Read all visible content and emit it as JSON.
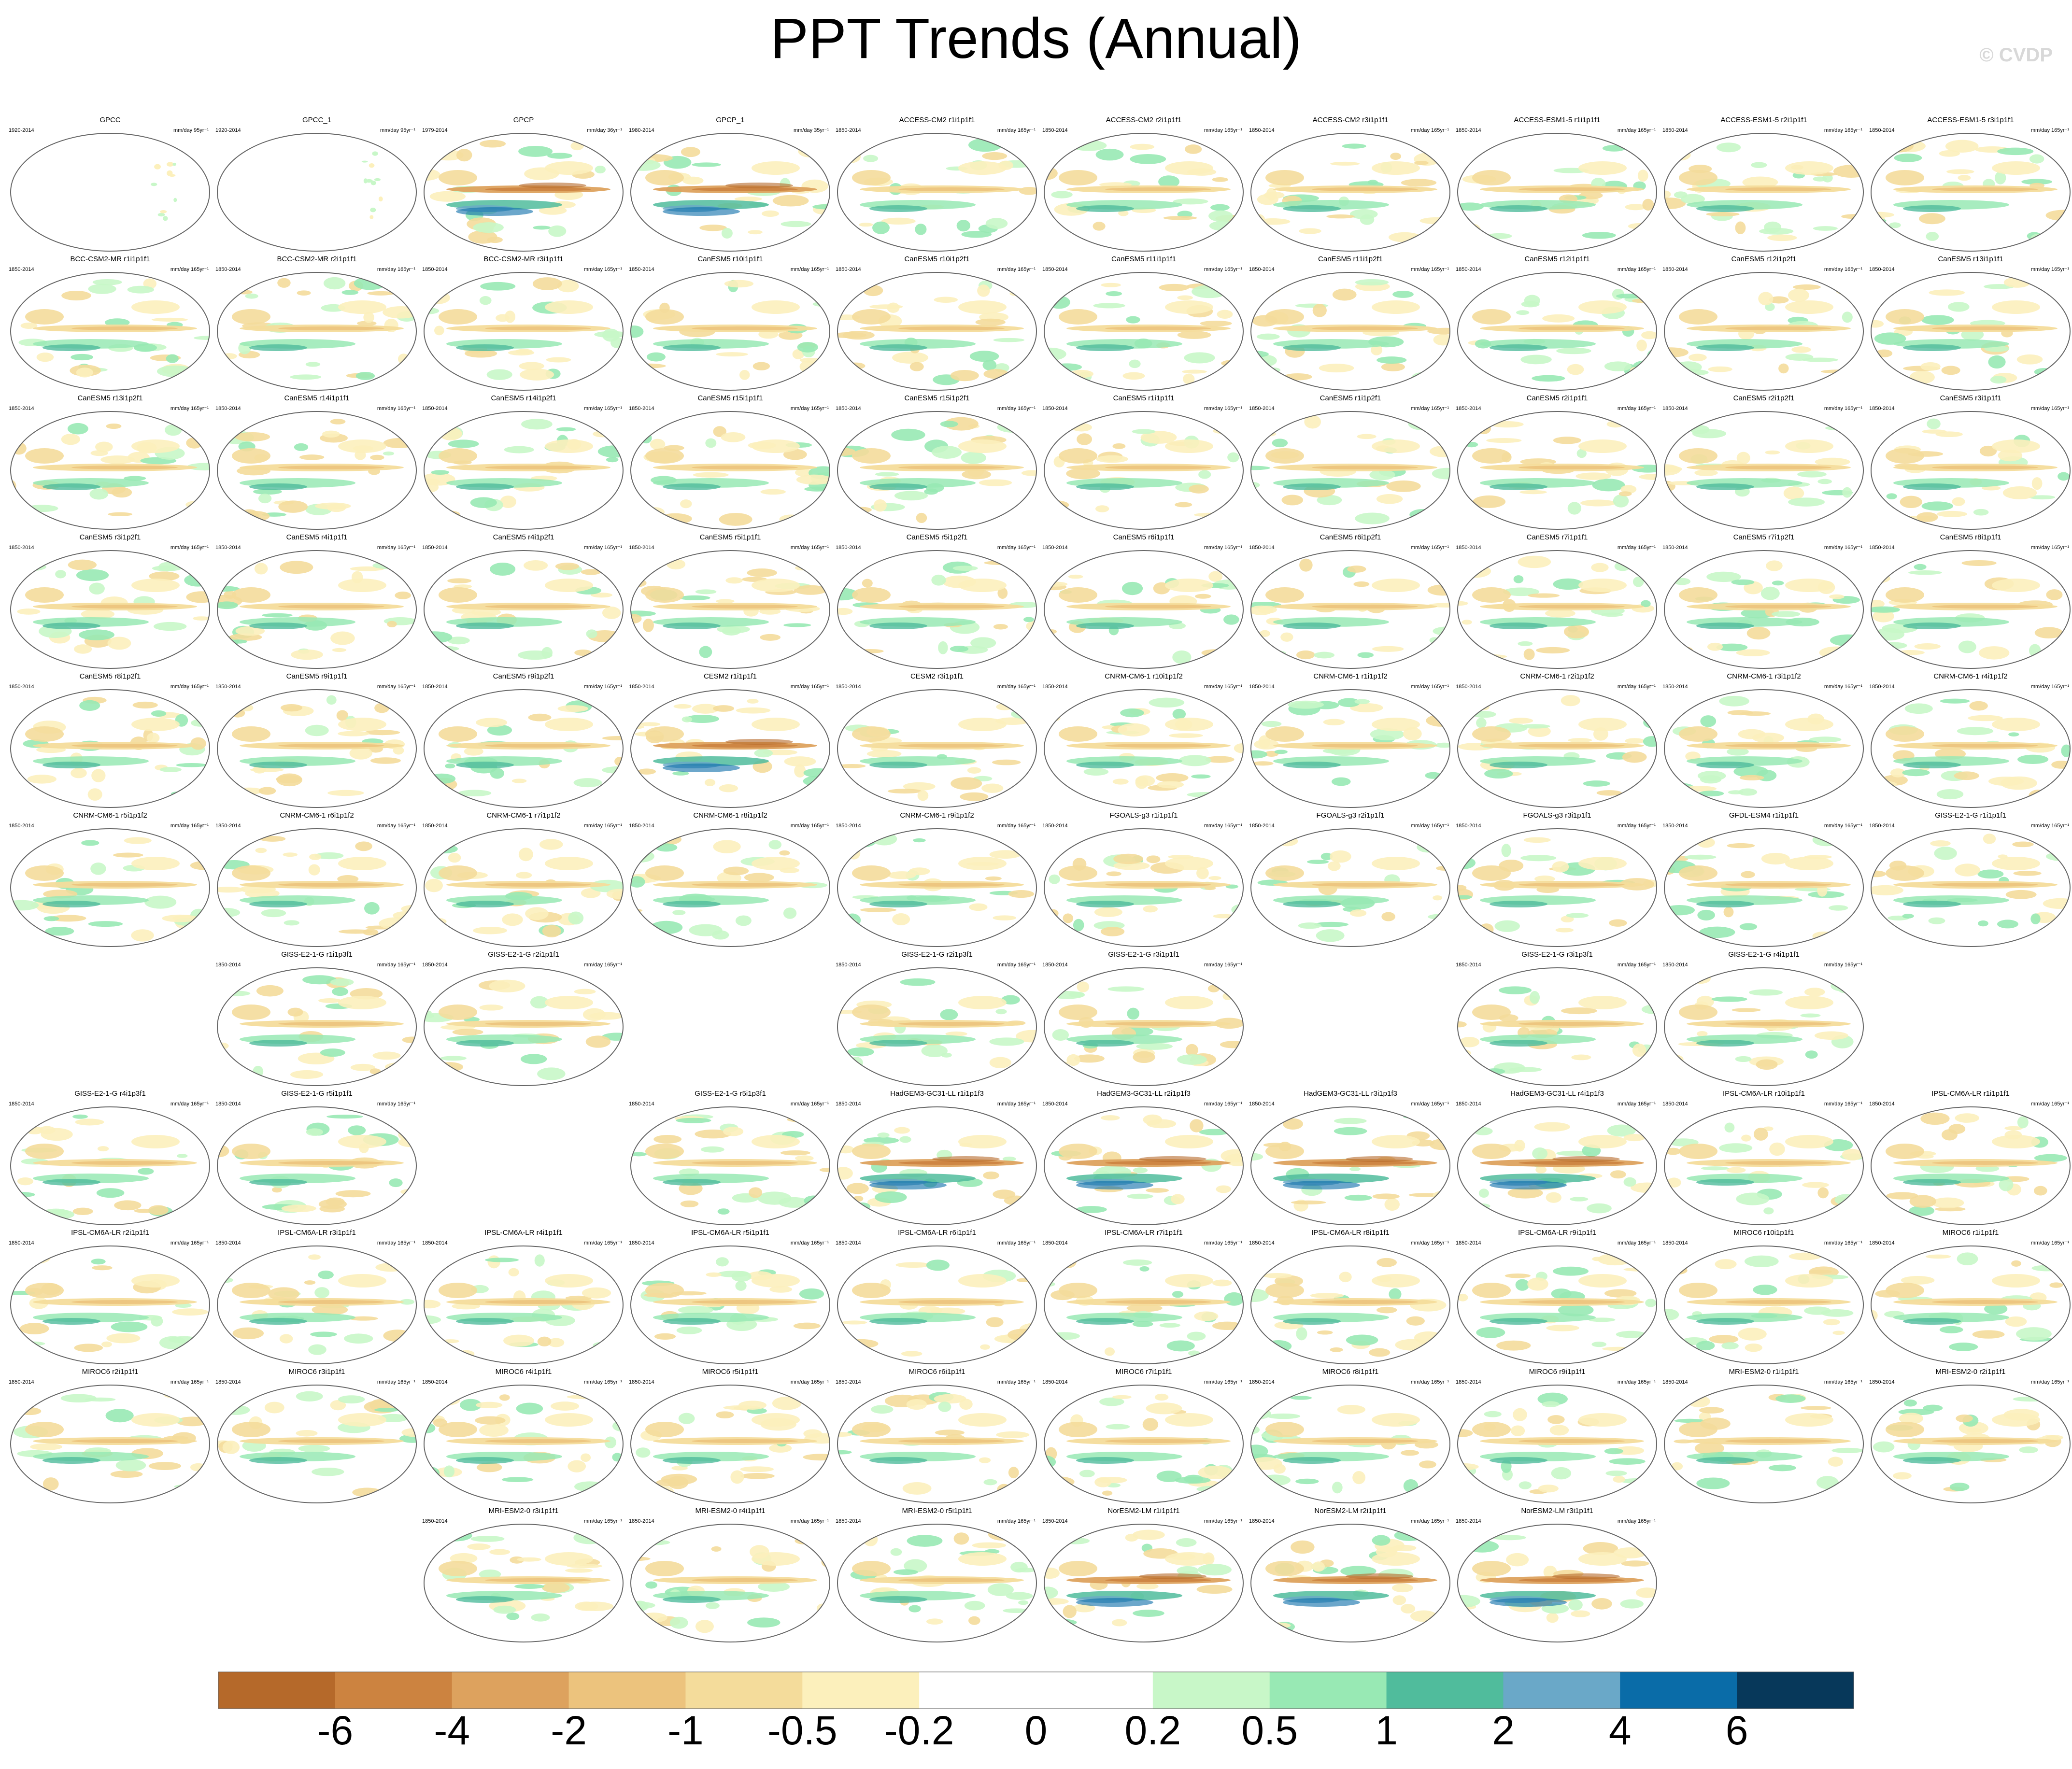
{
  "title": "PPT Trends (Annual)",
  "credit": "© CVDP",
  "chart_data": {
    "type": "heatmap",
    "variable": "PPT",
    "panel_grid": {
      "columns": 10,
      "rows": 11
    },
    "panels": [
      {
        "row": 0,
        "col": 0,
        "name": "GPCC",
        "period": "1920-2014",
        "units": "mm/day 95yr⁻¹",
        "pattern": "obs_land"
      },
      {
        "row": 0,
        "col": 1,
        "name": "GPCC_1",
        "period": "1920-2014",
        "units": "mm/day 95yr⁻¹",
        "pattern": "obs_land"
      },
      {
        "row": 0,
        "col": 2,
        "name": "GPCP",
        "period": "1979-2014",
        "units": "mm/day 36yr⁻¹",
        "pattern": "obs_full"
      },
      {
        "row": 0,
        "col": 3,
        "name": "GPCP_1",
        "period": "1980-2014",
        "units": "mm/day 35yr⁻¹",
        "pattern": "obs_full"
      },
      {
        "row": 0,
        "col": 4,
        "name": "ACCESS-CM2 r1i1p1f1",
        "period": "1850-2014",
        "units": "mm/day 165yr⁻¹",
        "pattern": "model"
      },
      {
        "row": 0,
        "col": 5,
        "name": "ACCESS-CM2 r2i1p1f1",
        "period": "1850-2014",
        "units": "mm/day 165yr⁻¹",
        "pattern": "model"
      },
      {
        "row": 0,
        "col": 6,
        "name": "ACCESS-CM2 r3i1p1f1",
        "period": "1850-2014",
        "units": "mm/day 165yr⁻¹",
        "pattern": "model"
      },
      {
        "row": 0,
        "col": 7,
        "name": "ACCESS-ESM1-5 r1i1p1f1",
        "period": "1850-2014",
        "units": "mm/day 165yr⁻¹",
        "pattern": "model"
      },
      {
        "row": 0,
        "col": 8,
        "name": "ACCESS-ESM1-5 r2i1p1f1",
        "period": "1850-2014",
        "units": "mm/day 165yr⁻¹",
        "pattern": "model"
      },
      {
        "row": 0,
        "col": 9,
        "name": "ACCESS-ESM1-5 r3i1p1f1",
        "period": "1850-2014",
        "units": "mm/day 165yr⁻¹",
        "pattern": "model"
      },
      {
        "row": 1,
        "col": 0,
        "name": "BCC-CSM2-MR r1i1p1f1",
        "period": "1850-2014",
        "units": "mm/day 165yr⁻¹",
        "pattern": "model"
      },
      {
        "row": 1,
        "col": 1,
        "name": "BCC-CSM2-MR r2i1p1f1",
        "period": "1850-2014",
        "units": "mm/day 165yr⁻¹",
        "pattern": "model"
      },
      {
        "row": 1,
        "col": 2,
        "name": "BCC-CSM2-MR r3i1p1f1",
        "period": "1850-2014",
        "units": "mm/day 165yr⁻¹",
        "pattern": "model"
      },
      {
        "row": 1,
        "col": 3,
        "name": "CanESM5 r10i1p1f1",
        "period": "1850-2014",
        "units": "mm/day 165yr⁻¹",
        "pattern": "model"
      },
      {
        "row": 1,
        "col": 4,
        "name": "CanESM5 r10i1p2f1",
        "period": "1850-2014",
        "units": "mm/day 165yr⁻¹",
        "pattern": "model"
      },
      {
        "row": 1,
        "col": 5,
        "name": "CanESM5 r11i1p1f1",
        "period": "1850-2014",
        "units": "mm/day 165yr⁻¹",
        "pattern": "model"
      },
      {
        "row": 1,
        "col": 6,
        "name": "CanESM5 r11i1p2f1",
        "period": "1850-2014",
        "units": "mm/day 165yr⁻¹",
        "pattern": "model"
      },
      {
        "row": 1,
        "col": 7,
        "name": "CanESM5 r12i1p1f1",
        "period": "1850-2014",
        "units": "mm/day 165yr⁻¹",
        "pattern": "model"
      },
      {
        "row": 1,
        "col": 8,
        "name": "CanESM5 r12i1p2f1",
        "period": "1850-2014",
        "units": "mm/day 165yr⁻¹",
        "pattern": "model"
      },
      {
        "row": 1,
        "col": 9,
        "name": "CanESM5 r13i1p1f1",
        "period": "1850-2014",
        "units": "mm/day 165yr⁻¹",
        "pattern": "model"
      },
      {
        "row": 2,
        "col": 0,
        "name": "CanESM5 r13i1p2f1",
        "period": "1850-2014",
        "units": "mm/day 165yr⁻¹",
        "pattern": "model"
      },
      {
        "row": 2,
        "col": 1,
        "name": "CanESM5 r14i1p1f1",
        "period": "1850-2014",
        "units": "mm/day 165yr⁻¹",
        "pattern": "model"
      },
      {
        "row": 2,
        "col": 2,
        "name": "CanESM5 r14i1p2f1",
        "period": "1850-2014",
        "units": "mm/day 165yr⁻¹",
        "pattern": "model"
      },
      {
        "row": 2,
        "col": 3,
        "name": "CanESM5 r15i1p1f1",
        "period": "1850-2014",
        "units": "mm/day 165yr⁻¹",
        "pattern": "model"
      },
      {
        "row": 2,
        "col": 4,
        "name": "CanESM5 r15i1p2f1",
        "period": "1850-2014",
        "units": "mm/day 165yr⁻¹",
        "pattern": "model"
      },
      {
        "row": 2,
        "col": 5,
        "name": "CanESM5 r1i1p1f1",
        "period": "1850-2014",
        "units": "mm/day 165yr⁻¹",
        "pattern": "model"
      },
      {
        "row": 2,
        "col": 6,
        "name": "CanESM5 r1i1p2f1",
        "period": "1850-2014",
        "units": "mm/day 165yr⁻¹",
        "pattern": "model"
      },
      {
        "row": 2,
        "col": 7,
        "name": "CanESM5 r2i1p1f1",
        "period": "1850-2014",
        "units": "mm/day 165yr⁻¹",
        "pattern": "model"
      },
      {
        "row": 2,
        "col": 8,
        "name": "CanESM5 r2i1p2f1",
        "period": "1850-2014",
        "units": "mm/day 165yr⁻¹",
        "pattern": "model"
      },
      {
        "row": 2,
        "col": 9,
        "name": "CanESM5 r3i1p1f1",
        "period": "1850-2014",
        "units": "mm/day 165yr⁻¹",
        "pattern": "model"
      },
      {
        "row": 3,
        "col": 0,
        "name": "CanESM5 r3i1p2f1",
        "period": "1850-2014",
        "units": "mm/day 165yr⁻¹",
        "pattern": "model"
      },
      {
        "row": 3,
        "col": 1,
        "name": "CanESM5 r4i1p1f1",
        "period": "1850-2014",
        "units": "mm/day 165yr⁻¹",
        "pattern": "model"
      },
      {
        "row": 3,
        "col": 2,
        "name": "CanESM5 r4i1p2f1",
        "period": "1850-2014",
        "units": "mm/day 165yr⁻¹",
        "pattern": "model"
      },
      {
        "row": 3,
        "col": 3,
        "name": "CanESM5 r5i1p1f1",
        "period": "1850-2014",
        "units": "mm/day 165yr⁻¹",
        "pattern": "model"
      },
      {
        "row": 3,
        "col": 4,
        "name": "CanESM5 r5i1p2f1",
        "period": "1850-2014",
        "units": "mm/day 165yr⁻¹",
        "pattern": "model"
      },
      {
        "row": 3,
        "col": 5,
        "name": "CanESM5 r6i1p1f1",
        "period": "1850-2014",
        "units": "mm/day 165yr⁻¹",
        "pattern": "model"
      },
      {
        "row": 3,
        "col": 6,
        "name": "CanESM5 r6i1p2f1",
        "period": "1850-2014",
        "units": "mm/day 165yr⁻¹",
        "pattern": "model"
      },
      {
        "row": 3,
        "col": 7,
        "name": "CanESM5 r7i1p1f1",
        "period": "1850-2014",
        "units": "mm/day 165yr⁻¹",
        "pattern": "model"
      },
      {
        "row": 3,
        "col": 8,
        "name": "CanESM5 r7i1p2f1",
        "period": "1850-2014",
        "units": "mm/day 165yr⁻¹",
        "pattern": "model"
      },
      {
        "row": 3,
        "col": 9,
        "name": "CanESM5 r8i1p1f1",
        "period": "1850-2014",
        "units": "mm/day 165yr⁻¹",
        "pattern": "model"
      },
      {
        "row": 4,
        "col": 0,
        "name": "CanESM5 r8i1p2f1",
        "period": "1850-2014",
        "units": "mm/day 165yr⁻¹",
        "pattern": "model"
      },
      {
        "row": 4,
        "col": 1,
        "name": "CanESM5 r9i1p1f1",
        "period": "1850-2014",
        "units": "mm/day 165yr⁻¹",
        "pattern": "model"
      },
      {
        "row": 4,
        "col": 2,
        "name": "CanESM5 r9i1p2f1",
        "period": "1850-2014",
        "units": "mm/day 165yr⁻¹",
        "pattern": "model"
      },
      {
        "row": 4,
        "col": 3,
        "name": "CESM2 r1i1p1f1",
        "period": "1850-2014",
        "units": "mm/day 165yr⁻¹",
        "pattern": "model_strong"
      },
      {
        "row": 4,
        "col": 4,
        "name": "CESM2 r3i1p1f1",
        "period": "1850-2014",
        "units": "mm/day 165yr⁻¹",
        "pattern": "model"
      },
      {
        "row": 4,
        "col": 5,
        "name": "CNRM-CM6-1 r10i1p1f2",
        "period": "1850-2014",
        "units": "mm/day 165yr⁻¹",
        "pattern": "model"
      },
      {
        "row": 4,
        "col": 6,
        "name": "CNRM-CM6-1 r1i1p1f2",
        "period": "1850-2014",
        "units": "mm/day 165yr⁻¹",
        "pattern": "model"
      },
      {
        "row": 4,
        "col": 7,
        "name": "CNRM-CM6-1 r2i1p1f2",
        "period": "1850-2014",
        "units": "mm/day 165yr⁻¹",
        "pattern": "model"
      },
      {
        "row": 4,
        "col": 8,
        "name": "CNRM-CM6-1 r3i1p1f2",
        "period": "1850-2014",
        "units": "mm/day 165yr⁻¹",
        "pattern": "model"
      },
      {
        "row": 4,
        "col": 9,
        "name": "CNRM-CM6-1 r4i1p1f2",
        "period": "1850-2014",
        "units": "mm/day 165yr⁻¹",
        "pattern": "model"
      },
      {
        "row": 5,
        "col": 0,
        "name": "CNRM-CM6-1 r5i1p1f2",
        "period": "1850-2014",
        "units": "mm/day 165yr⁻¹",
        "pattern": "model"
      },
      {
        "row": 5,
        "col": 1,
        "name": "CNRM-CM6-1 r6i1p1f2",
        "period": "1850-2014",
        "units": "mm/day 165yr⁻¹",
        "pattern": "model"
      },
      {
        "row": 5,
        "col": 2,
        "name": "CNRM-CM6-1 r7i1p1f2",
        "period": "1850-2014",
        "units": "mm/day 165yr⁻¹",
        "pattern": "model"
      },
      {
        "row": 5,
        "col": 3,
        "name": "CNRM-CM6-1 r8i1p1f2",
        "period": "1850-2014",
        "units": "mm/day 165yr⁻¹",
        "pattern": "model"
      },
      {
        "row": 5,
        "col": 4,
        "name": "CNRM-CM6-1 r9i1p1f2",
        "period": "1850-2014",
        "units": "mm/day 165yr⁻¹",
        "pattern": "model"
      },
      {
        "row": 5,
        "col": 5,
        "name": "FGOALS-g3 r1i1p1f1",
        "period": "1850-2014",
        "units": "mm/day 165yr⁻¹",
        "pattern": "model"
      },
      {
        "row": 5,
        "col": 6,
        "name": "FGOALS-g3 r2i1p1f1",
        "period": "1850-2014",
        "units": "mm/day 165yr⁻¹",
        "pattern": "model"
      },
      {
        "row": 5,
        "col": 7,
        "name": "FGOALS-g3 r3i1p1f1",
        "period": "1850-2014",
        "units": "mm/day 165yr⁻¹",
        "pattern": "model"
      },
      {
        "row": 5,
        "col": 8,
        "name": "GFDL-ESM4 r1i1p1f1",
        "period": "1850-2014",
        "units": "mm/day 165yr⁻¹",
        "pattern": "model"
      },
      {
        "row": 5,
        "col": 9,
        "name": "GISS-E2-1-G r1i1p1f1",
        "period": "1850-2014",
        "units": "mm/day 165yr⁻¹",
        "pattern": "model"
      },
      {
        "row": 6,
        "col": 1,
        "name": "GISS-E2-1-G r1i1p3f1",
        "period": "1850-2014",
        "units": "mm/day 165yr⁻¹",
        "pattern": "model"
      },
      {
        "row": 6,
        "col": 2,
        "name": "GISS-E2-1-G r2i1p1f1",
        "period": "1850-2014",
        "units": "mm/day 165yr⁻¹",
        "pattern": "model"
      },
      {
        "row": 6,
        "col": 4,
        "name": "GISS-E2-1-G r2i1p3f1",
        "period": "1850-2014",
        "units": "mm/day 165yr⁻¹",
        "pattern": "model"
      },
      {
        "row": 6,
        "col": 5,
        "name": "GISS-E2-1-G r3i1p1f1",
        "period": "1850-2014",
        "units": "mm/day 165yr⁻¹",
        "pattern": "model"
      },
      {
        "row": 6,
        "col": 7,
        "name": "GISS-E2-1-G r3i1p3f1",
        "period": "1850-2014",
        "units": "mm/day 165yr⁻¹",
        "pattern": "model"
      },
      {
        "row": 6,
        "col": 8,
        "name": "GISS-E2-1-G r4i1p1f1",
        "period": "1850-2014",
        "units": "mm/day 165yr⁻¹",
        "pattern": "model"
      },
      {
        "row": 7,
        "col": 0,
        "name": "GISS-E2-1-G r4i1p3f1",
        "period": "1850-2014",
        "units": "mm/day 165yr⁻¹",
        "pattern": "model"
      },
      {
        "row": 7,
        "col": 1,
        "name": "GISS-E2-1-G r5i1p1f1",
        "period": "1850-2014",
        "units": "mm/day 165yr⁻¹",
        "pattern": "model"
      },
      {
        "row": 7,
        "col": 3,
        "name": "GISS-E2-1-G r5i1p3f1",
        "period": "1850-2014",
        "units": "mm/day 165yr⁻¹",
        "pattern": "model"
      },
      {
        "row": 7,
        "col": 4,
        "name": "HadGEM3-GC31-LL r1i1p1f3",
        "period": "1850-2014",
        "units": "mm/day 165yr⁻¹",
        "pattern": "model_strong"
      },
      {
        "row": 7,
        "col": 5,
        "name": "HadGEM3-GC31-LL r2i1p1f3",
        "period": "1850-2014",
        "units": "mm/day 165yr⁻¹",
        "pattern": "model_strong"
      },
      {
        "row": 7,
        "col": 6,
        "name": "HadGEM3-GC31-LL r3i1p1f3",
        "period": "1850-2014",
        "units": "mm/day 165yr⁻¹",
        "pattern": "model_strong"
      },
      {
        "row": 7,
        "col": 7,
        "name": "HadGEM3-GC31-LL r4i1p1f3",
        "period": "1850-2014",
        "units": "mm/day 165yr⁻¹",
        "pattern": "model_strong"
      },
      {
        "row": 7,
        "col": 8,
        "name": "IPSL-CM6A-LR r10i1p1f1",
        "period": "1850-2014",
        "units": "mm/day 165yr⁻¹",
        "pattern": "model"
      },
      {
        "row": 7,
        "col": 9,
        "name": "IPSL-CM6A-LR r1i1p1f1",
        "period": "1850-2014",
        "units": "mm/day 165yr⁻¹",
        "pattern": "model"
      },
      {
        "row": 8,
        "col": 0,
        "name": "IPSL-CM6A-LR r2i1p1f1",
        "period": "1850-2014",
        "units": "mm/day 165yr⁻¹",
        "pattern": "model"
      },
      {
        "row": 8,
        "col": 1,
        "name": "IPSL-CM6A-LR r3i1p1f1",
        "period": "1850-2014",
        "units": "mm/day 165yr⁻¹",
        "pattern": "model"
      },
      {
        "row": 8,
        "col": 2,
        "name": "IPSL-CM6A-LR r4i1p1f1",
        "period": "1850-2014",
        "units": "mm/day 165yr⁻¹",
        "pattern": "model"
      },
      {
        "row": 8,
        "col": 3,
        "name": "IPSL-CM6A-LR r5i1p1f1",
        "period": "1850-2014",
        "units": "mm/day 165yr⁻¹",
        "pattern": "model"
      },
      {
        "row": 8,
        "col": 4,
        "name": "IPSL-CM6A-LR r6i1p1f1",
        "period": "1850-2014",
        "units": "mm/day 165yr⁻¹",
        "pattern": "model"
      },
      {
        "row": 8,
        "col": 5,
        "name": "IPSL-CM6A-LR r7i1p1f1",
        "period": "1850-2014",
        "units": "mm/day 165yr⁻¹",
        "pattern": "model"
      },
      {
        "row": 8,
        "col": 6,
        "name": "IPSL-CM6A-LR r8i1p1f1",
        "period": "1850-2014",
        "units": "mm/day 165yr⁻¹",
        "pattern": "model"
      },
      {
        "row": 8,
        "col": 7,
        "name": "IPSL-CM6A-LR r9i1p1f1",
        "period": "1850-2014",
        "units": "mm/day 165yr⁻¹",
        "pattern": "model"
      },
      {
        "row": 8,
        "col": 8,
        "name": "MIROC6 r10i1p1f1",
        "period": "1850-2014",
        "units": "mm/day 165yr⁻¹",
        "pattern": "model"
      },
      {
        "row": 8,
        "col": 9,
        "name": "MIROC6 r1i1p1f1",
        "period": "1850-2014",
        "units": "mm/day 165yr⁻¹",
        "pattern": "model"
      },
      {
        "row": 9,
        "col": 0,
        "name": "MIROC6 r2i1p1f1",
        "period": "1850-2014",
        "units": "mm/day 165yr⁻¹",
        "pattern": "model"
      },
      {
        "row": 9,
        "col": 1,
        "name": "MIROC6 r3i1p1f1",
        "period": "1850-2014",
        "units": "mm/day 165yr⁻¹",
        "pattern": "model"
      },
      {
        "row": 9,
        "col": 2,
        "name": "MIROC6 r4i1p1f1",
        "period": "1850-2014",
        "units": "mm/day 165yr⁻¹",
        "pattern": "model"
      },
      {
        "row": 9,
        "col": 3,
        "name": "MIROC6 r5i1p1f1",
        "period": "1850-2014",
        "units": "mm/day 165yr⁻¹",
        "pattern": "model"
      },
      {
        "row": 9,
        "col": 4,
        "name": "MIROC6 r6i1p1f1",
        "period": "1850-2014",
        "units": "mm/day 165yr⁻¹",
        "pattern": "model"
      },
      {
        "row": 9,
        "col": 5,
        "name": "MIROC6 r7i1p1f1",
        "period": "1850-2014",
        "units": "mm/day 165yr⁻¹",
        "pattern": "model"
      },
      {
        "row": 9,
        "col": 6,
        "name": "MIROC6 r8i1p1f1",
        "period": "1850-2014",
        "units": "mm/day 165yr⁻¹",
        "pattern": "model"
      },
      {
        "row": 9,
        "col": 7,
        "name": "MIROC6 r9i1p1f1",
        "period": "1850-2014",
        "units": "mm/day 165yr⁻¹",
        "pattern": "model"
      },
      {
        "row": 9,
        "col": 8,
        "name": "MRI-ESM2-0 r1i1p1f1",
        "period": "1850-2014",
        "units": "mm/day 165yr⁻¹",
        "pattern": "model"
      },
      {
        "row": 9,
        "col": 9,
        "name": "MRI-ESM2-0 r2i1p1f1",
        "period": "1850-2014",
        "units": "mm/day 165yr⁻¹",
        "pattern": "model"
      },
      {
        "row": 10,
        "col": 2,
        "name": "MRI-ESM2-0 r3i1p1f1",
        "period": "1850-2014",
        "units": "mm/day 165yr⁻¹",
        "pattern": "model"
      },
      {
        "row": 10,
        "col": 3,
        "name": "MRI-ESM2-0 r4i1p1f1",
        "period": "1850-2014",
        "units": "mm/day 165yr⁻¹",
        "pattern": "model"
      },
      {
        "row": 10,
        "col": 4,
        "name": "MRI-ESM2-0 r5i1p1f1",
        "period": "1850-2014",
        "units": "mm/day 165yr⁻¹",
        "pattern": "model"
      },
      {
        "row": 10,
        "col": 5,
        "name": "NorESM2-LM r1i1p1f1",
        "period": "1850-2014",
        "units": "mm/day 165yr⁻¹",
        "pattern": "model_strong"
      },
      {
        "row": 10,
        "col": 6,
        "name": "NorESM2-LM r2i1p1f1",
        "period": "1850-2014",
        "units": "mm/day 165yr⁻¹",
        "pattern": "model_strong"
      },
      {
        "row": 10,
        "col": 7,
        "name": "NorESM2-LM r3i1p1f1",
        "period": "1850-2014",
        "units": "mm/day 165yr⁻¹",
        "pattern": "model_strong"
      }
    ],
    "colorbar": {
      "labels": [
        "-6",
        "-4",
        "-2",
        "-1",
        "-0.5",
        "-0.2",
        "0",
        "0.2",
        "0.5",
        "1",
        "2",
        "4",
        "6"
      ],
      "colors": [
        "#b5692a",
        "#cc8340",
        "#dda25e",
        "#ecc37d",
        "#f4dc9b",
        "#fcf0bc",
        "#ffffff",
        "#ffffff",
        "#c8f7c8",
        "#98e9b4",
        "#50bc9c",
        "#6aa8c8",
        "#0a6ca8",
        "#07385a"
      ]
    }
  }
}
